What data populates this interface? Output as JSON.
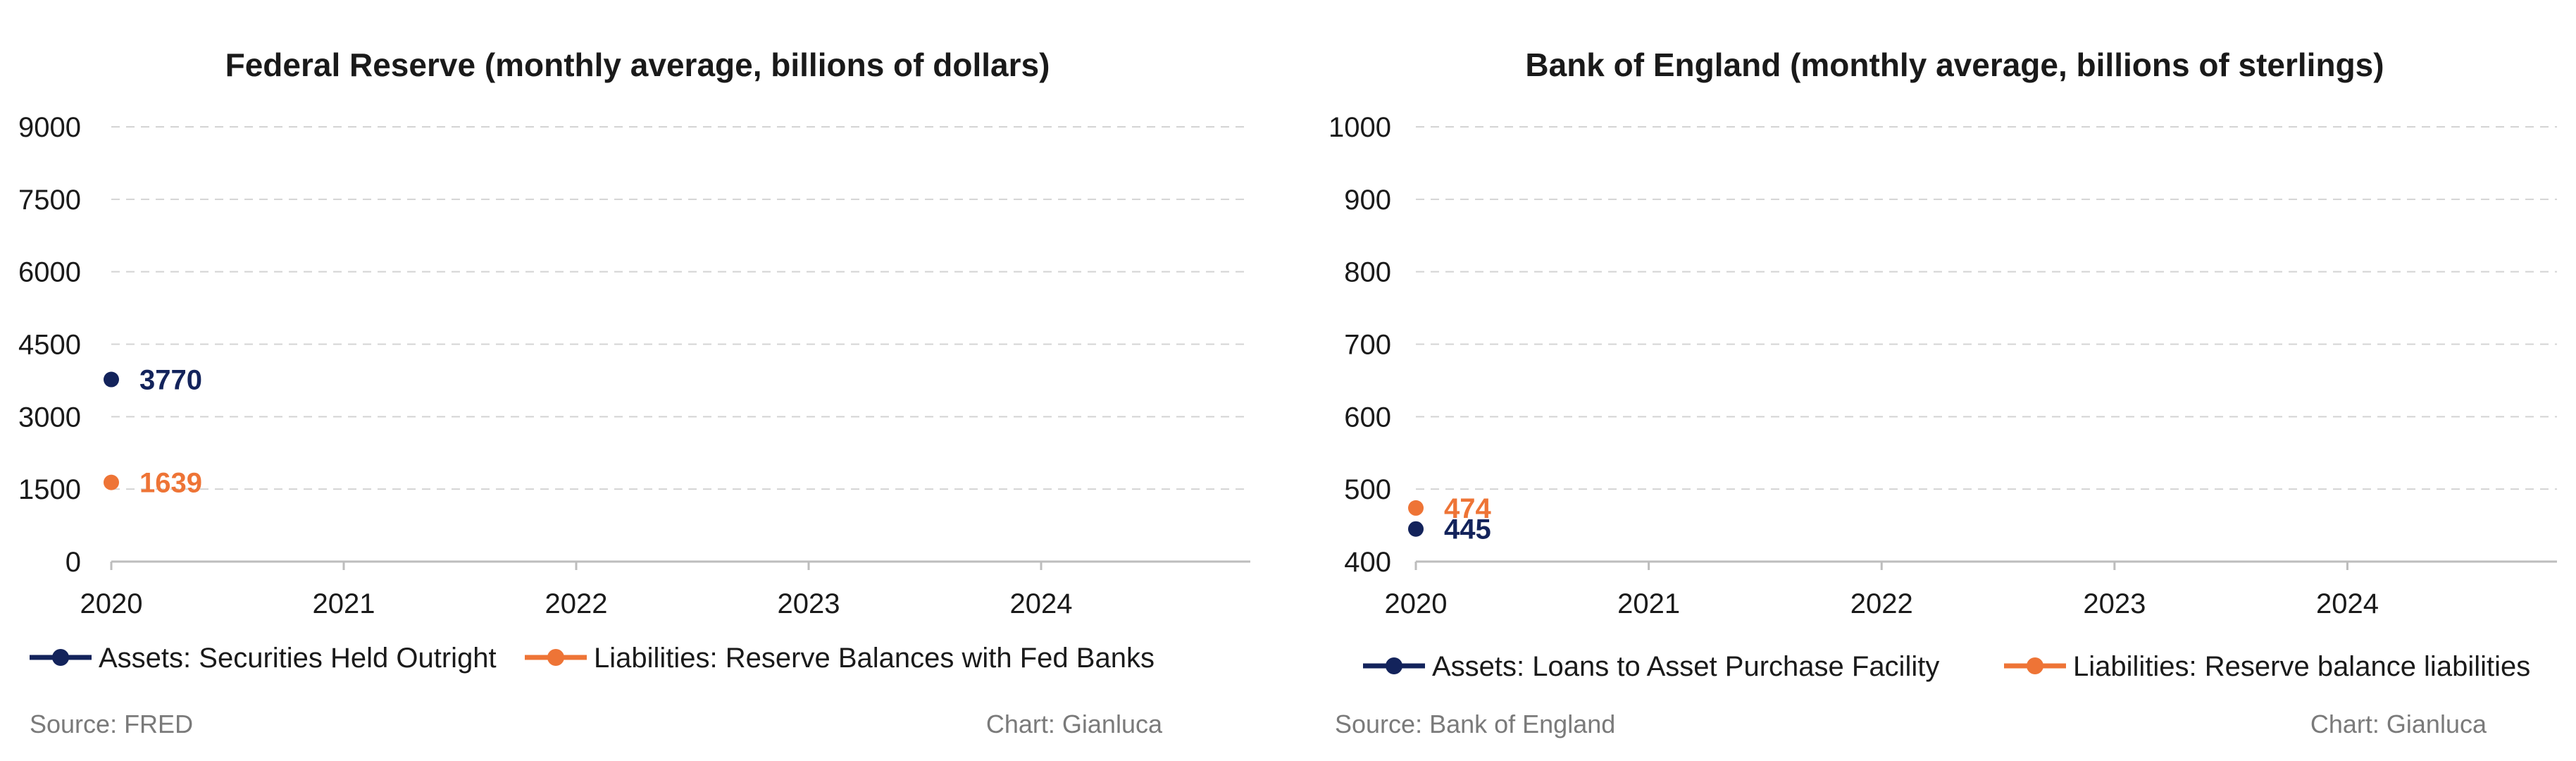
{
  "colors": {
    "assets": "#13235b",
    "liabilities": "#ee7436",
    "grid": "#d4d4d4",
    "axis": "#bdbdbd",
    "text": "#1a1a1a",
    "muted": "#7a7a7a"
  },
  "chart_data": [
    {
      "type": "line",
      "title": "Federal Reserve (monthly average, billions of dollars)",
      "xlabel": "",
      "ylabel": "",
      "x_ticks": [
        "2020",
        "2021",
        "2022",
        "2023",
        "2024"
      ],
      "y_ticks": [
        "0",
        "1500",
        "3000",
        "4500",
        "6000",
        "7500",
        "9000"
      ],
      "ylim": [
        0,
        9000
      ],
      "xlim": [
        2020,
        2024.9
      ],
      "grid": true,
      "legend_position": "bottom",
      "series": [
        {
          "name": "Assets: Securities Held Outright",
          "color_key": "assets",
          "points": [
            {
              "x": 2020,
              "y": 3770
            }
          ],
          "last_label": "3770"
        },
        {
          "name": "Liabilities: Reserve Balances with Fed Banks",
          "color_key": "liabilities",
          "points": [
            {
              "x": 2020,
              "y": 1639
            }
          ],
          "last_label": "1639"
        }
      ],
      "source": "Source: FRED",
      "credit": "Chart: Gianluca"
    },
    {
      "type": "line",
      "title": "Bank of England (monthly average, billions of sterlings)",
      "xlabel": "",
      "ylabel": "",
      "x_ticks": [
        "2020",
        "2021",
        "2022",
        "2023",
        "2024"
      ],
      "y_ticks": [
        "400",
        "500",
        "600",
        "700",
        "800",
        "900",
        "1000"
      ],
      "ylim": [
        400,
        1000
      ],
      "xlim": [
        2020,
        2024.9
      ],
      "grid": true,
      "legend_position": "bottom",
      "series": [
        {
          "name": "Assets: Loans to Asset Purchase Facility",
          "color_key": "assets",
          "points": [
            {
              "x": 2020,
              "y": 445
            }
          ],
          "last_label": "445"
        },
        {
          "name": "Liabilities: Reserve balance liabilities",
          "color_key": "liabilities",
          "points": [
            {
              "x": 2020,
              "y": 474
            }
          ],
          "last_label": "474"
        }
      ],
      "source": "Source: Bank of England",
      "credit": "Chart: Gianluca"
    }
  ]
}
